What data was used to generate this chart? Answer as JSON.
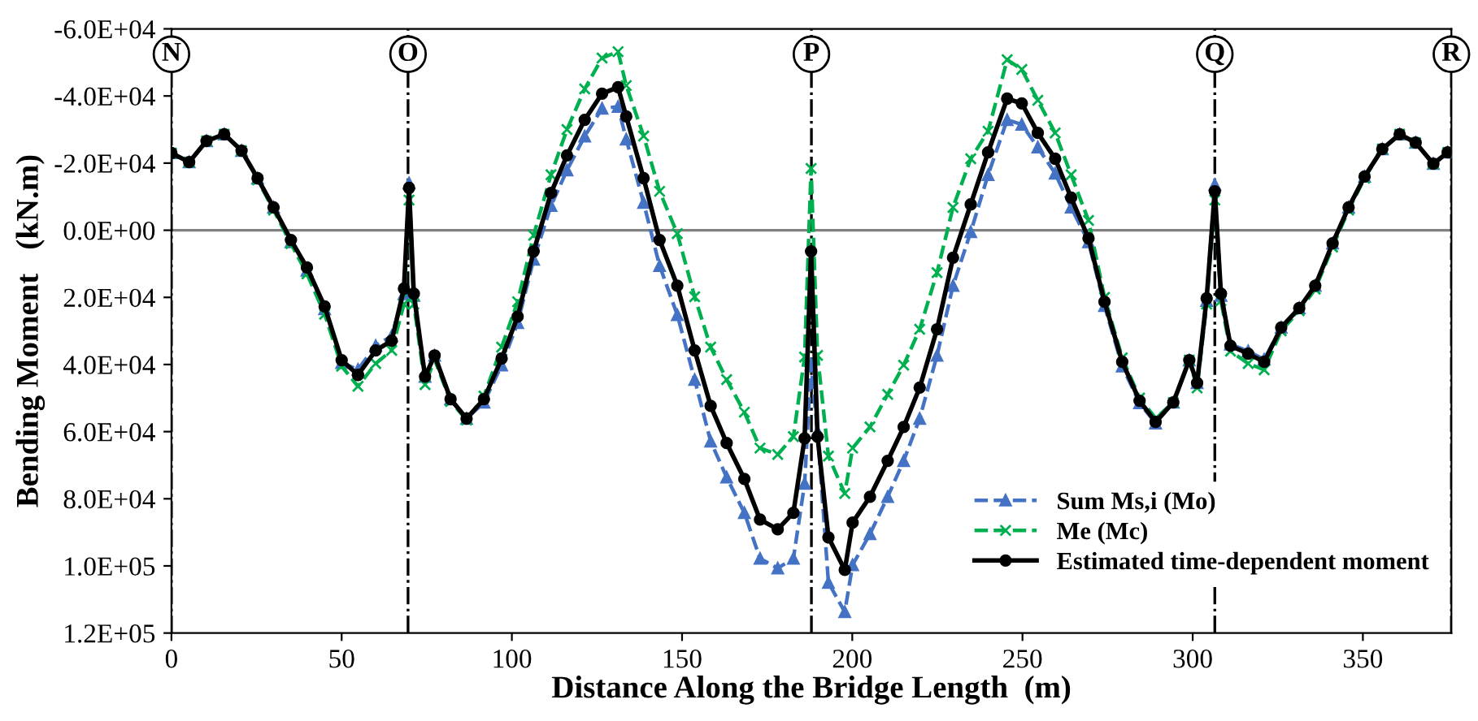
{
  "chart_data": {
    "type": "line",
    "xlabel": "Distance Along the Bridge Length  (m)",
    "ylabel": "Bending Moment   (kN.m)",
    "x": [
      0,
      5.2,
      10.3,
      15.5,
      20.6,
      25.3,
      30,
      35.1,
      39.8,
      45,
      50,
      54.8,
      60,
      64.7,
      68.3,
      69.8,
      71.2,
      74.5,
      77.3,
      82,
      86.7,
      91.8,
      97,
      101.7,
      106.4,
      111.5,
      116.2,
      121.4,
      126.5,
      131.2,
      133.6,
      138.7,
      143.4,
      148.6,
      153.7,
      158.4,
      163.1,
      168.3,
      172.9,
      178.1,
      182.7,
      186,
      187.9,
      189.8,
      193,
      197.8,
      200.1,
      205.2,
      210.4,
      215.1,
      219.8,
      224.9,
      229.6,
      234.8,
      239.9,
      245.5,
      249.8,
      254.5,
      259.6,
      264.3,
      269.4,
      274.1,
      279.3,
      284.4,
      289.1,
      294.3,
      299,
      301.3,
      304.1,
      306.5,
      308.3,
      311.1,
      316.3,
      321,
      326,
      331.3,
      336,
      341.1,
      345.8,
      350.5,
      355.7,
      360.8,
      365.5,
      370.7,
      374.9
    ],
    "series": [
      {
        "name": "Sum Ms,i (Mo)",
        "color": "#4472c4",
        "marker": "triangle",
        "line_style": "dashed",
        "values": [
          -23000,
          -20300,
          -26600,
          -28600,
          -23700,
          -15500,
          -6800,
          3500,
          12000,
          23500,
          39500,
          41500,
          34400,
          31500,
          19000,
          -14000,
          19500,
          43600,
          37300,
          50300,
          56100,
          51300,
          40200,
          27600,
          8700,
          -7300,
          -17900,
          -28000,
          -36300,
          -36800,
          -27100,
          -8200,
          10600,
          25200,
          44500,
          62900,
          73600,
          84200,
          97800,
          100700,
          97800,
          75500,
          40000,
          60000,
          105000,
          113700,
          99700,
          90500,
          79400,
          68700,
          56100,
          37300,
          16500,
          500,
          -16500,
          -32900,
          -31500,
          -24700,
          -16900,
          -6800,
          3500,
          22500,
          40500,
          51500,
          57500,
          51300,
          38700,
          45500,
          21000,
          -13600,
          19500,
          34000,
          36000,
          38500,
          29000,
          23200,
          16500,
          3900,
          -6800,
          -16000,
          -24200,
          -28600,
          -26100,
          -19800,
          -23200
        ]
      },
      {
        "name": "Me (Mc)",
        "color": "#00b050",
        "marker": "cross",
        "line_style": "dashed",
        "values": [
          -23000,
          -20300,
          -26600,
          -28600,
          -23700,
          -15000,
          -6000,
          4000,
          13000,
          25000,
          40500,
          46500,
          39700,
          35800,
          22000,
          -9000,
          22000,
          46000,
          38500,
          51000,
          56500,
          49400,
          34800,
          21300,
          1500,
          -16500,
          -30000,
          -42100,
          -51300,
          -53200,
          -43100,
          -28100,
          -11600,
          1000,
          19800,
          34800,
          44500,
          54200,
          64900,
          66800,
          61500,
          37800,
          -18400,
          37300,
          67300,
          78400,
          64900,
          58600,
          48900,
          40200,
          29500,
          12600,
          -6800,
          -21300,
          -29500,
          -50800,
          -47900,
          -38700,
          -29000,
          -16500,
          -2900,
          20000,
          38000,
          50000,
          56000,
          51300,
          38700,
          47000,
          22000,
          -9000,
          21000,
          36000,
          39700,
          41600,
          30000,
          24000,
          17500,
          5000,
          -6000,
          -15500,
          -24200,
          -28600,
          -26100,
          -19800,
          -23200
        ]
      },
      {
        "name": "Estimated time-dependent moment",
        "color": "#000000",
        "marker": "circle",
        "line_style": "solid",
        "values": [
          -23000,
          -20300,
          -26600,
          -28600,
          -23700,
          -15500,
          -6800,
          2900,
          11100,
          22700,
          38700,
          43100,
          35800,
          32900,
          17400,
          -12600,
          18900,
          43600,
          37300,
          50300,
          56100,
          50300,
          38200,
          25700,
          6300,
          -11100,
          -22300,
          -32900,
          -40700,
          -42600,
          -33900,
          -15500,
          2900,
          16500,
          35800,
          52300,
          63400,
          74100,
          86200,
          89100,
          84200,
          62000,
          6300,
          61500,
          91500,
          101200,
          87100,
          79400,
          68700,
          58600,
          46900,
          29500,
          8200,
          -7700,
          -23200,
          -39200,
          -37800,
          -29000,
          -21300,
          -9700,
          2400,
          21300,
          39200,
          50800,
          57100,
          51300,
          38700,
          45500,
          20300,
          -11600,
          18900,
          34400,
          36800,
          39200,
          29000,
          23200,
          16500,
          3900,
          -6800,
          -16000,
          -24200,
          -28600,
          -26100,
          -19800,
          -23200
        ]
      }
    ],
    "xlim": [
      0,
      376
    ],
    "xticks": [
      0,
      50,
      100,
      150,
      200,
      250,
      300,
      350
    ],
    "ylim": [
      120000,
      -60000
    ],
    "yticks": [
      {
        "value": -60000,
        "label": "-6.0E+04"
      },
      {
        "value": -40000,
        "label": "-4.0E+04"
      },
      {
        "value": -20000,
        "label": "-2.0E+04"
      },
      {
        "value": 0,
        "label": "0.0E+00"
      },
      {
        "value": 20000,
        "label": "2.0E+04"
      },
      {
        "value": 40000,
        "label": "4.0E+04"
      },
      {
        "value": 60000,
        "label": "6.0E+04"
      },
      {
        "value": 80000,
        "label": "8.0E+04"
      },
      {
        "value": 100000,
        "label": "1.0E+05"
      },
      {
        "value": 120000,
        "label": "1.2E+05"
      }
    ],
    "ref_lines": [
      {
        "axis": "y",
        "value": 0,
        "color": "#808080",
        "line_style": "solid"
      },
      {
        "axis": "x",
        "value": 0,
        "label": "N",
        "color": "#000000",
        "line_style": "dashdot"
      },
      {
        "axis": "x",
        "value": 69.5,
        "label": "O",
        "color": "#000000",
        "line_style": "dashdot"
      },
      {
        "axis": "x",
        "value": 188,
        "label": "P",
        "color": "#000000",
        "line_style": "dashdot"
      },
      {
        "axis": "x",
        "value": 306.5,
        "label": "Q",
        "color": "#000000",
        "line_style": "dashdot"
      },
      {
        "axis": "x",
        "value": 376,
        "label": "R",
        "color": "#000000",
        "line_style": "dashdot"
      }
    ],
    "grid": false,
    "legend": "bottom right"
  }
}
